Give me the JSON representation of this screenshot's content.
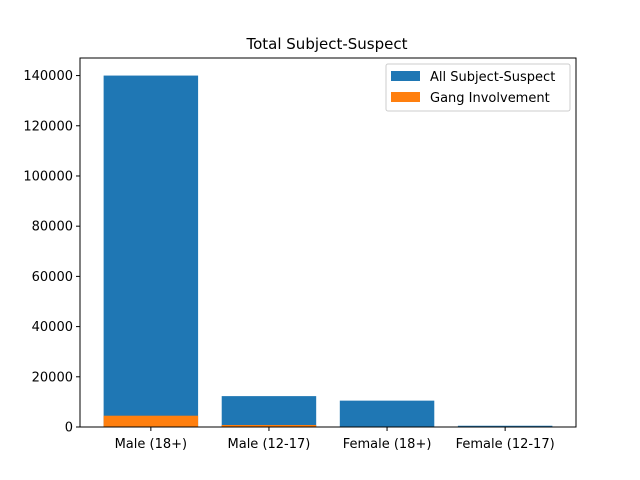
{
  "chart_data": {
    "type": "bar",
    "title": "Total Subject-Suspect",
    "xlabel": "",
    "ylabel": "",
    "categories": [
      "Male (18+)",
      "Male (12-17)",
      "Female (18+)",
      "Female (12-17)"
    ],
    "series": [
      {
        "name": "All Subject-Suspect",
        "color": "#1f77b4",
        "values": [
          140000,
          12300,
          10500,
          500
        ]
      },
      {
        "name": "Gang Involvement",
        "color": "#ff7f0e",
        "values": [
          4500,
          800,
          80,
          10
        ]
      }
    ],
    "ylim": [
      0,
      147000
    ],
    "yticks": [
      0,
      20000,
      40000,
      60000,
      80000,
      100000,
      120000,
      140000
    ],
    "ytick_labels": [
      "0",
      "20000",
      "40000",
      "60000",
      "80000",
      "100000",
      "120000",
      "140000"
    ],
    "grid": false,
    "legend": "top-right"
  }
}
